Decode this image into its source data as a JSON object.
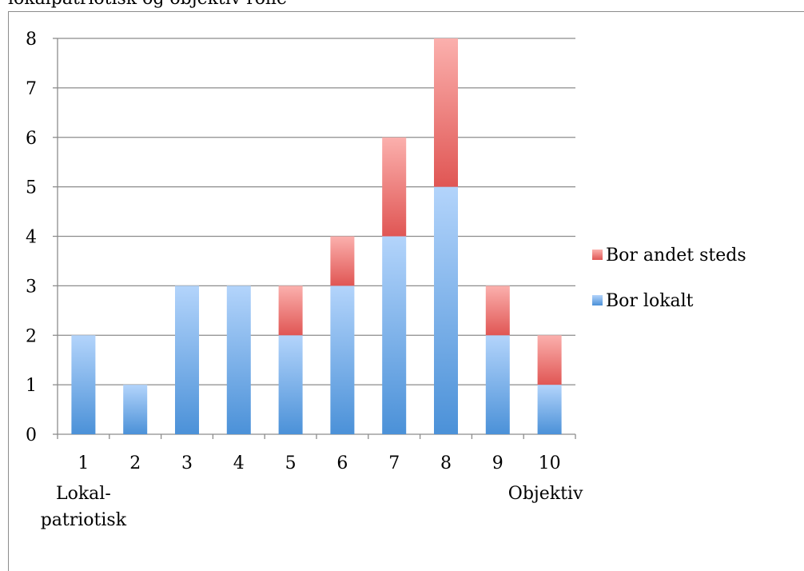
{
  "title": "lokalpatriotisk og objektiv rolle",
  "chart_data": {
    "type": "bar",
    "stacked": true,
    "categories": [
      "1",
      "2",
      "3",
      "4",
      "5",
      "6",
      "7",
      "8",
      "9",
      "10"
    ],
    "series": [
      {
        "name": "Bor lokalt",
        "values": [
          2,
          1,
          3,
          3,
          2,
          3,
          4,
          5,
          2,
          1
        ],
        "color_top": "#b3d4fb",
        "color_bottom": "#4b91d8"
      },
      {
        "name": "Bor andet steds",
        "values": [
          0,
          0,
          0,
          0,
          1,
          1,
          2,
          3,
          1,
          1
        ],
        "color_top": "#fbb0ad",
        "color_bottom": "#e05654"
      }
    ],
    "ylim": [
      0,
      8
    ],
    "yticks": [
      "0",
      "1",
      "2",
      "3",
      "4",
      "5",
      "6",
      "7",
      "8"
    ],
    "grid": true,
    "legend_position": "right",
    "legend_order": [
      "Bor andet steds",
      "Bor lokalt"
    ],
    "x_end_labels": {
      "left": [
        "Lokal-",
        "patriotisk"
      ],
      "right": "Objektiv"
    }
  }
}
